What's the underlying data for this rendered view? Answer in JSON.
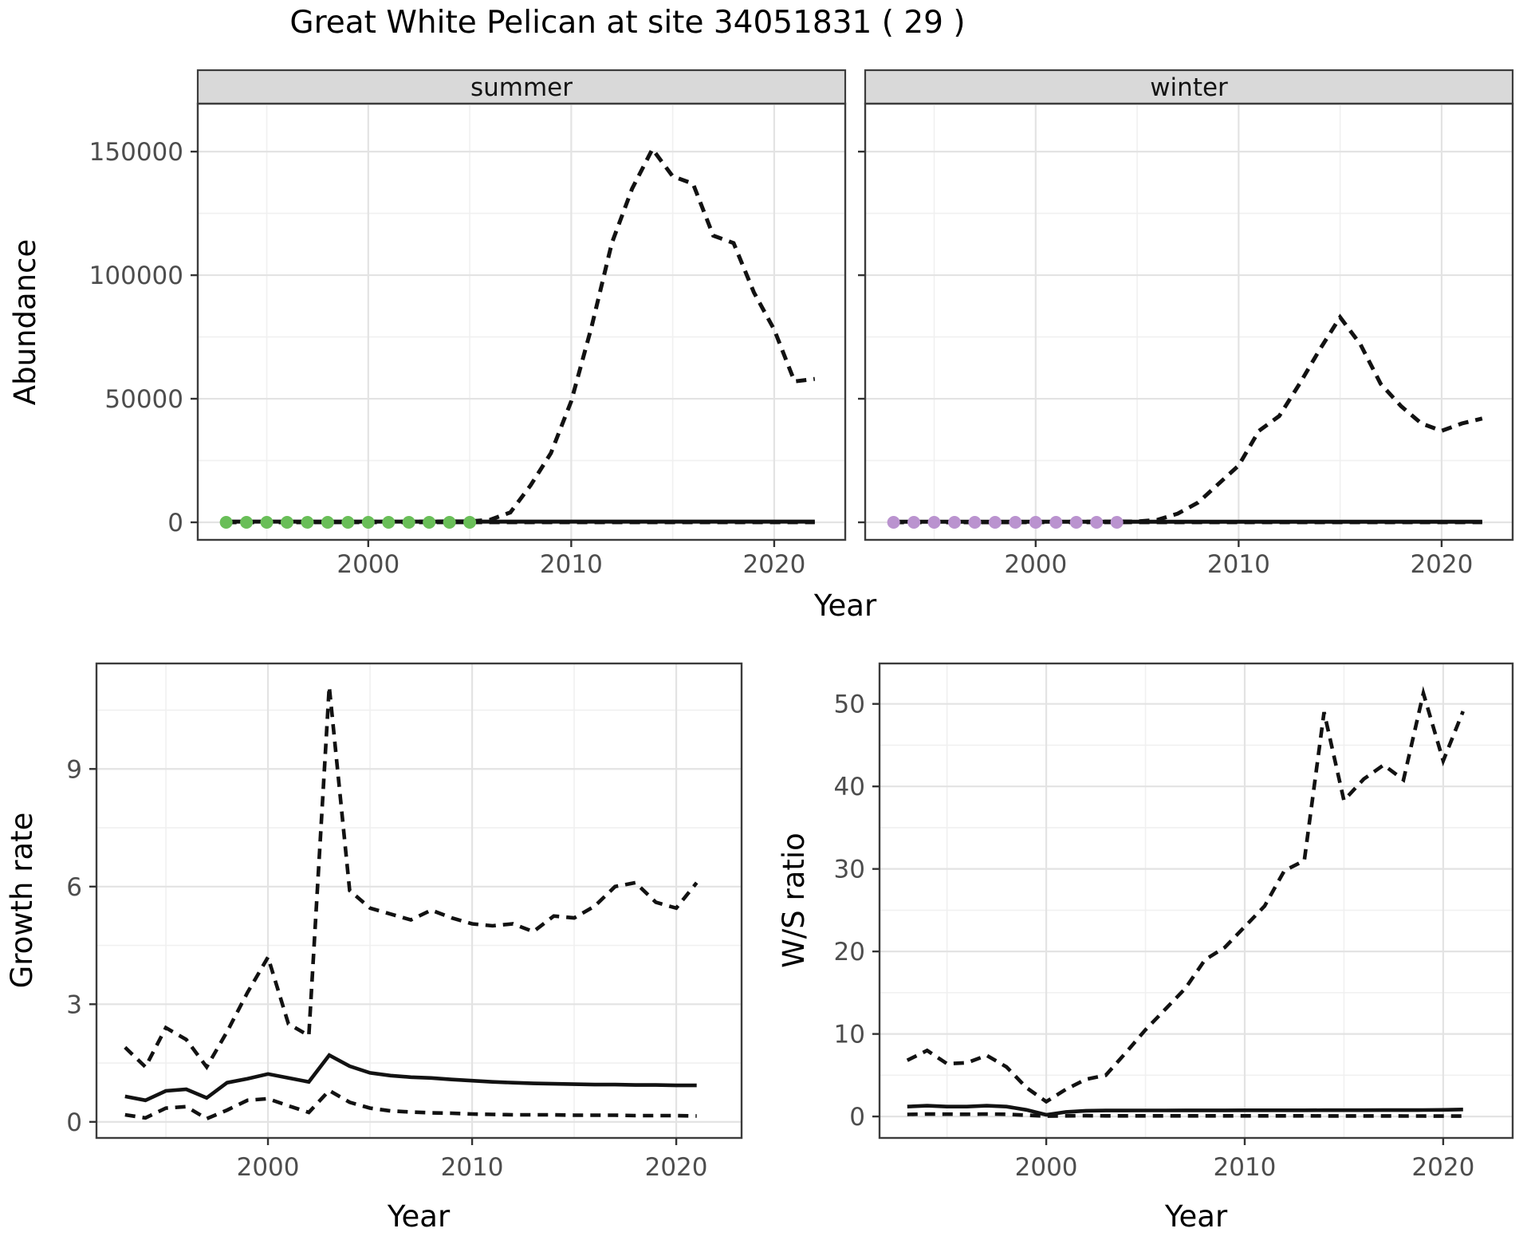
{
  "title": "Great White Pelican at site 34051831 ( 29 )",
  "colors": {
    "summer_dot": "#69BE58",
    "winter_dot": "#BA93CF",
    "line": "#121212",
    "strip_fill": "#D9D9D9",
    "panel_border": "#3C3C3C",
    "grid_major": "#E3E3E3",
    "grid_minor": "#F0F0F0",
    "tick_label": "#4D4D4D",
    "axis_label": "#000000"
  },
  "chart_data": [
    {
      "id": "abundance",
      "type": "line",
      "xlabel": "Year",
      "ylabel": "Abundance",
      "xticks": [
        2000,
        2010,
        2020
      ],
      "yticks": [
        0,
        50000,
        100000,
        150000
      ],
      "xlim": [
        1991.6,
        2023.5
      ],
      "ylim": [
        -7100,
        169400
      ],
      "grid": true,
      "x": [
        1993,
        1994,
        1995,
        1996,
        1997,
        1998,
        1999,
        2000,
        2001,
        2002,
        2003,
        2004,
        2005,
        2006,
        2007,
        2008,
        2009,
        2010,
        2011,
        2012,
        2013,
        2014,
        2015,
        2016,
        2017,
        2018,
        2019,
        2020,
        2021,
        2022
      ],
      "facets": [
        {
          "label": "summer",
          "dot_color": "#69BE58",
          "dot_years": [
            1993,
            1994,
            1995,
            1996,
            1997,
            1998,
            1999,
            2000,
            2001,
            2002,
            2003,
            2004,
            2005
          ],
          "dot_value": 0,
          "series": [
            {
              "name": "upper_ci",
              "style": "dashed",
              "values": [
                50,
                60,
                70,
                80,
                100,
                120,
                150,
                180,
                220,
                260,
                300,
                350,
                400,
                1000,
                4000,
                15000,
                28000,
                49000,
                79000,
                113000,
                135000,
                151000,
                140000,
                137000,
                116000,
                113000,
                93000,
                78000,
                57000,
                58000
              ]
            },
            {
              "name": "median",
              "style": "solid",
              "values": [
                300,
                300,
                300,
                300,
                300,
                300,
                300,
                300,
                300,
                300,
                300,
                300,
                300,
                300,
                300,
                300,
                300,
                300,
                300,
                300,
                300,
                300,
                300,
                300,
                300,
                300,
                300,
                300,
                300,
                300
              ]
            },
            {
              "name": "lower_ci",
              "style": "dashed",
              "values": [
                40,
                40,
                40,
                40,
                40,
                40,
                40,
                40,
                40,
                40,
                40,
                40,
                40,
                40,
                40,
                40,
                40,
                40,
                40,
                40,
                40,
                40,
                40,
                40,
                40,
                40,
                40,
                40,
                40,
                40
              ]
            }
          ]
        },
        {
          "label": "winter",
          "dot_color": "#BA93CF",
          "dot_years": [
            1993,
            1994,
            1995,
            1996,
            1997,
            1998,
            1999,
            2000,
            2001,
            2002,
            2003,
            2004
          ],
          "dot_value": 0,
          "series": [
            {
              "name": "upper_ci",
              "style": "dashed",
              "values": [
                40,
                50,
                60,
                70,
                80,
                100,
                120,
                150,
                180,
                220,
                260,
                300,
                350,
                1000,
                3500,
                8000,
                15500,
                23000,
                37000,
                43000,
                56000,
                70000,
                83000,
                72000,
                56000,
                47000,
                40000,
                37000,
                40000,
                42000
              ]
            },
            {
              "name": "median",
              "style": "solid",
              "values": [
                250,
                250,
                250,
                250,
                250,
                250,
                250,
                250,
                250,
                250,
                250,
                250,
                250,
                250,
                250,
                250,
                250,
                250,
                250,
                250,
                250,
                250,
                250,
                250,
                250,
                250,
                250,
                250,
                250,
                250
              ]
            },
            {
              "name": "lower_ci",
              "style": "dashed",
              "values": [
                30,
                30,
                30,
                30,
                30,
                30,
                30,
                30,
                30,
                30,
                30,
                30,
                30,
                30,
                30,
                30,
                30,
                30,
                30,
                30,
                30,
                30,
                30,
                30,
                30,
                30,
                30,
                30,
                30,
                30
              ]
            }
          ]
        }
      ]
    },
    {
      "id": "growth_rate",
      "type": "line",
      "xlabel": "Year",
      "ylabel": "Growth rate",
      "xticks": [
        2000,
        2010,
        2020
      ],
      "yticks": [
        0,
        3,
        6,
        9
      ],
      "xlim": [
        1991.6,
        2023.2
      ],
      "ylim": [
        -0.41,
        11.69
      ],
      "grid": true,
      "x": [
        1993,
        1994,
        1995,
        1996,
        1997,
        1998,
        1999,
        2000,
        2001,
        2002,
        2003,
        2004,
        2005,
        2006,
        2007,
        2008,
        2009,
        2010,
        2011,
        2012,
        2013,
        2014,
        2015,
        2016,
        2017,
        2018,
        2019,
        2020,
        2021
      ],
      "series": [
        {
          "name": "upper_ci",
          "style": "dashed",
          "values": [
            1.9,
            1.4,
            2.4,
            2.1,
            1.4,
            2.3,
            3.3,
            4.2,
            2.5,
            2.2,
            11.1,
            5.9,
            5.45,
            5.3,
            5.15,
            5.4,
            5.2,
            5.05,
            5.0,
            5.05,
            4.85,
            5.25,
            5.2,
            5.5,
            6.0,
            6.1,
            5.6,
            5.45,
            6.1
          ]
        },
        {
          "name": "median",
          "style": "solid",
          "values": [
            0.65,
            0.55,
            0.79,
            0.83,
            0.61,
            1.0,
            1.1,
            1.22,
            1.12,
            1.02,
            1.7,
            1.42,
            1.25,
            1.18,
            1.14,
            1.12,
            1.08,
            1.05,
            1.02,
            1.0,
            0.98,
            0.97,
            0.96,
            0.95,
            0.95,
            0.94,
            0.94,
            0.93,
            0.93
          ]
        },
        {
          "name": "lower_ci",
          "style": "dashed",
          "values": [
            0.18,
            0.1,
            0.35,
            0.39,
            0.08,
            0.3,
            0.55,
            0.59,
            0.41,
            0.24,
            0.8,
            0.5,
            0.35,
            0.28,
            0.25,
            0.23,
            0.22,
            0.2,
            0.19,
            0.18,
            0.18,
            0.18,
            0.17,
            0.17,
            0.17,
            0.16,
            0.16,
            0.16,
            0.15
          ]
        }
      ]
    },
    {
      "id": "ws_ratio",
      "type": "line",
      "xlabel": "Year",
      "ylabel": "W/S ratio",
      "xticks": [
        2000,
        2010,
        2020
      ],
      "yticks": [
        0,
        10,
        20,
        30,
        40,
        50
      ],
      "xlim": [
        1991.6,
        2023.5
      ],
      "ylim": [
        -2.6,
        54.9
      ],
      "grid": true,
      "x": [
        1993,
        1994,
        1995,
        1996,
        1997,
        1998,
        1999,
        2000,
        2001,
        2002,
        2003,
        2004,
        2005,
        2006,
        2007,
        2008,
        2009,
        2010,
        2011,
        2012,
        2013,
        2014,
        2015,
        2016,
        2017,
        2018,
        2019,
        2020,
        2021
      ],
      "series": [
        {
          "name": "upper_ci",
          "style": "dashed",
          "values": [
            6.8,
            8.0,
            6.4,
            6.5,
            7.4,
            6.0,
            3.5,
            1.8,
            3.3,
            4.5,
            5.0,
            7.7,
            10.5,
            13.0,
            15.5,
            19.0,
            20.5,
            23.0,
            25.5,
            29.8,
            31.0,
            49.0,
            38.3,
            40.9,
            42.6,
            40.8,
            51.3,
            43.1,
            49.1
          ]
        },
        {
          "name": "median",
          "style": "solid",
          "values": [
            1.2,
            1.3,
            1.2,
            1.2,
            1.3,
            1.2,
            0.8,
            0.2,
            0.55,
            0.7,
            0.72,
            0.72,
            0.73,
            0.73,
            0.74,
            0.74,
            0.74,
            0.75,
            0.75,
            0.75,
            0.75,
            0.76,
            0.76,
            0.76,
            0.77,
            0.77,
            0.78,
            0.8,
            0.85
          ]
        },
        {
          "name": "lower_ci",
          "style": "dashed",
          "values": [
            0.25,
            0.3,
            0.28,
            0.27,
            0.3,
            0.27,
            0.15,
            0.05,
            0.08,
            0.1,
            0.08,
            0.08,
            0.08,
            0.08,
            0.08,
            0.08,
            0.08,
            0.08,
            0.08,
            0.08,
            0.08,
            0.07,
            0.07,
            0.07,
            0.07,
            0.06,
            0.06,
            0.05,
            0.05
          ]
        }
      ]
    }
  ]
}
